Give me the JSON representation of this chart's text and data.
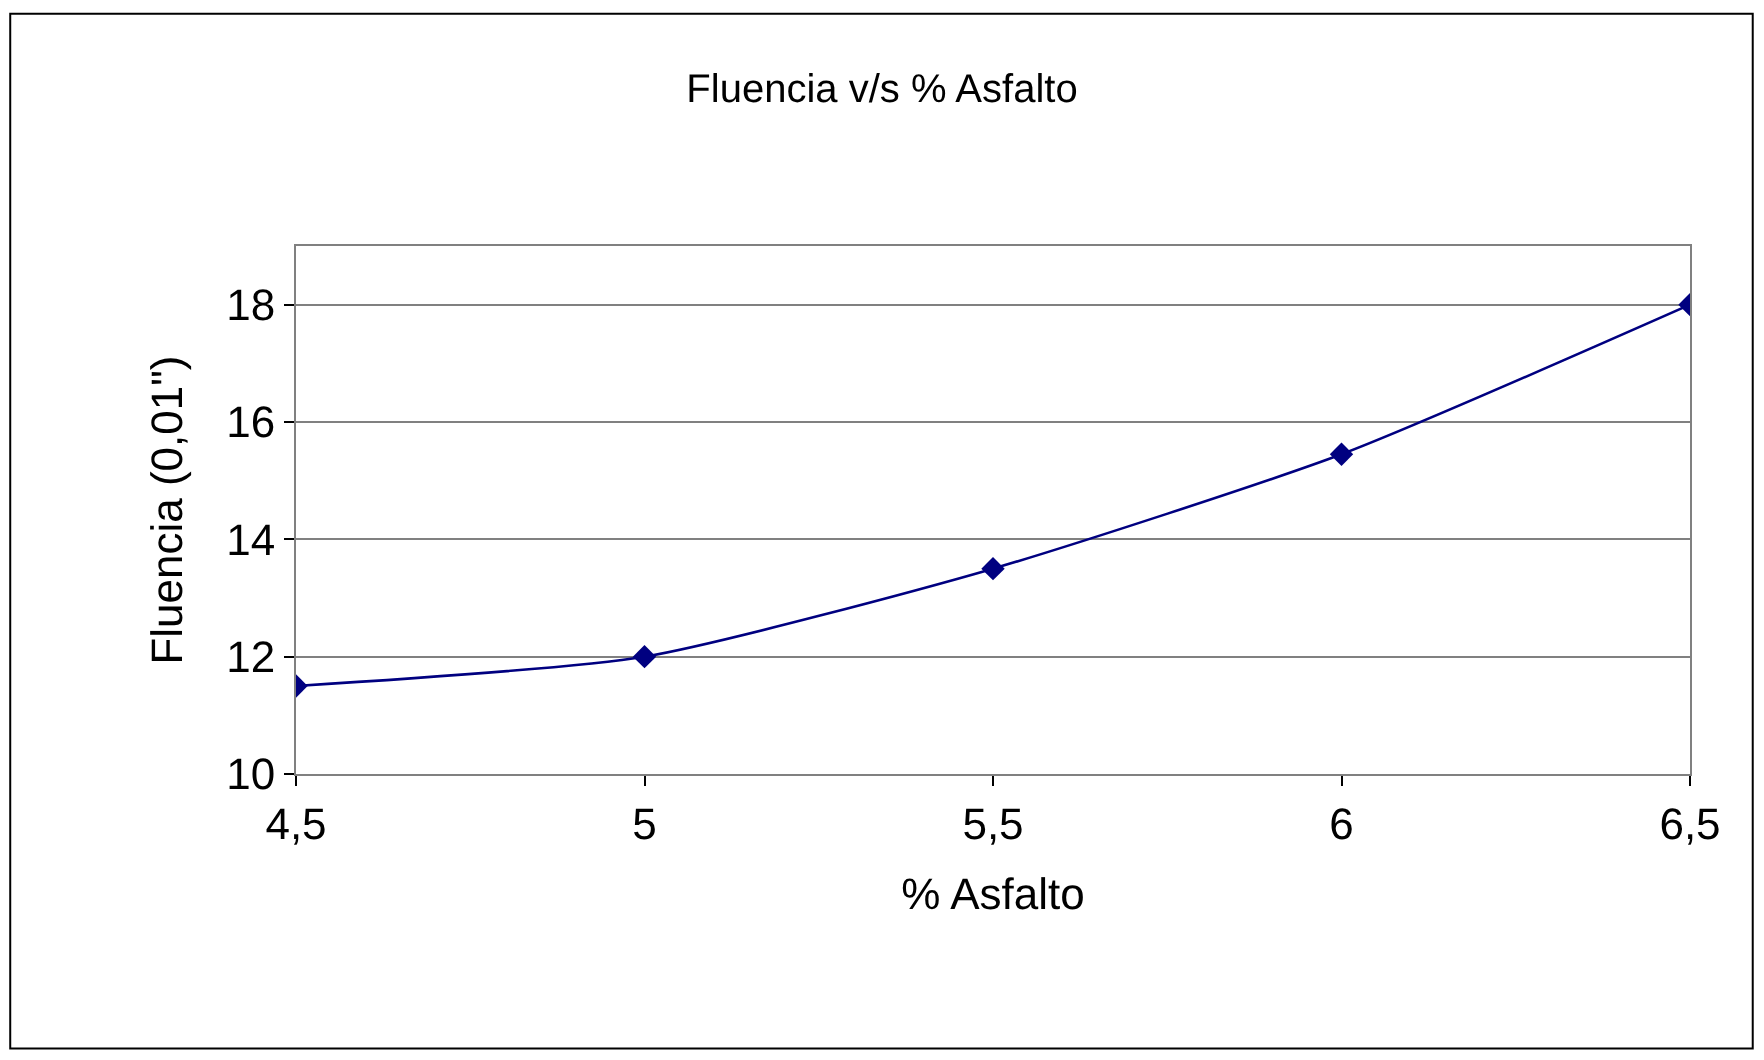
{
  "chart_data": {
    "type": "line",
    "title": "Fluencia v/s % Asfalto",
    "xlabel": "% Asfalto",
    "ylabel": "Fluencia (0,01\")",
    "x": [
      4.5,
      5,
      5.5,
      6,
      6.5
    ],
    "series": [
      {
        "color": "#000080",
        "values": [
          11.5,
          12,
          13.5,
          15.45,
          18
        ]
      }
    ],
    "xlim": [
      4.5,
      6.5
    ],
    "xticks": [
      {
        "value": 4.5,
        "label": "4,5"
      },
      5,
      {
        "value": 5.5,
        "label": "5,5"
      },
      6,
      {
        "value": 6.5,
        "label": "6,5"
      }
    ],
    "ylim": [
      10,
      19
    ],
    "yticks": [
      10,
      12,
      14,
      16,
      18
    ],
    "grid": "y",
    "marker": "diamond",
    "line_style": "solid"
  }
}
